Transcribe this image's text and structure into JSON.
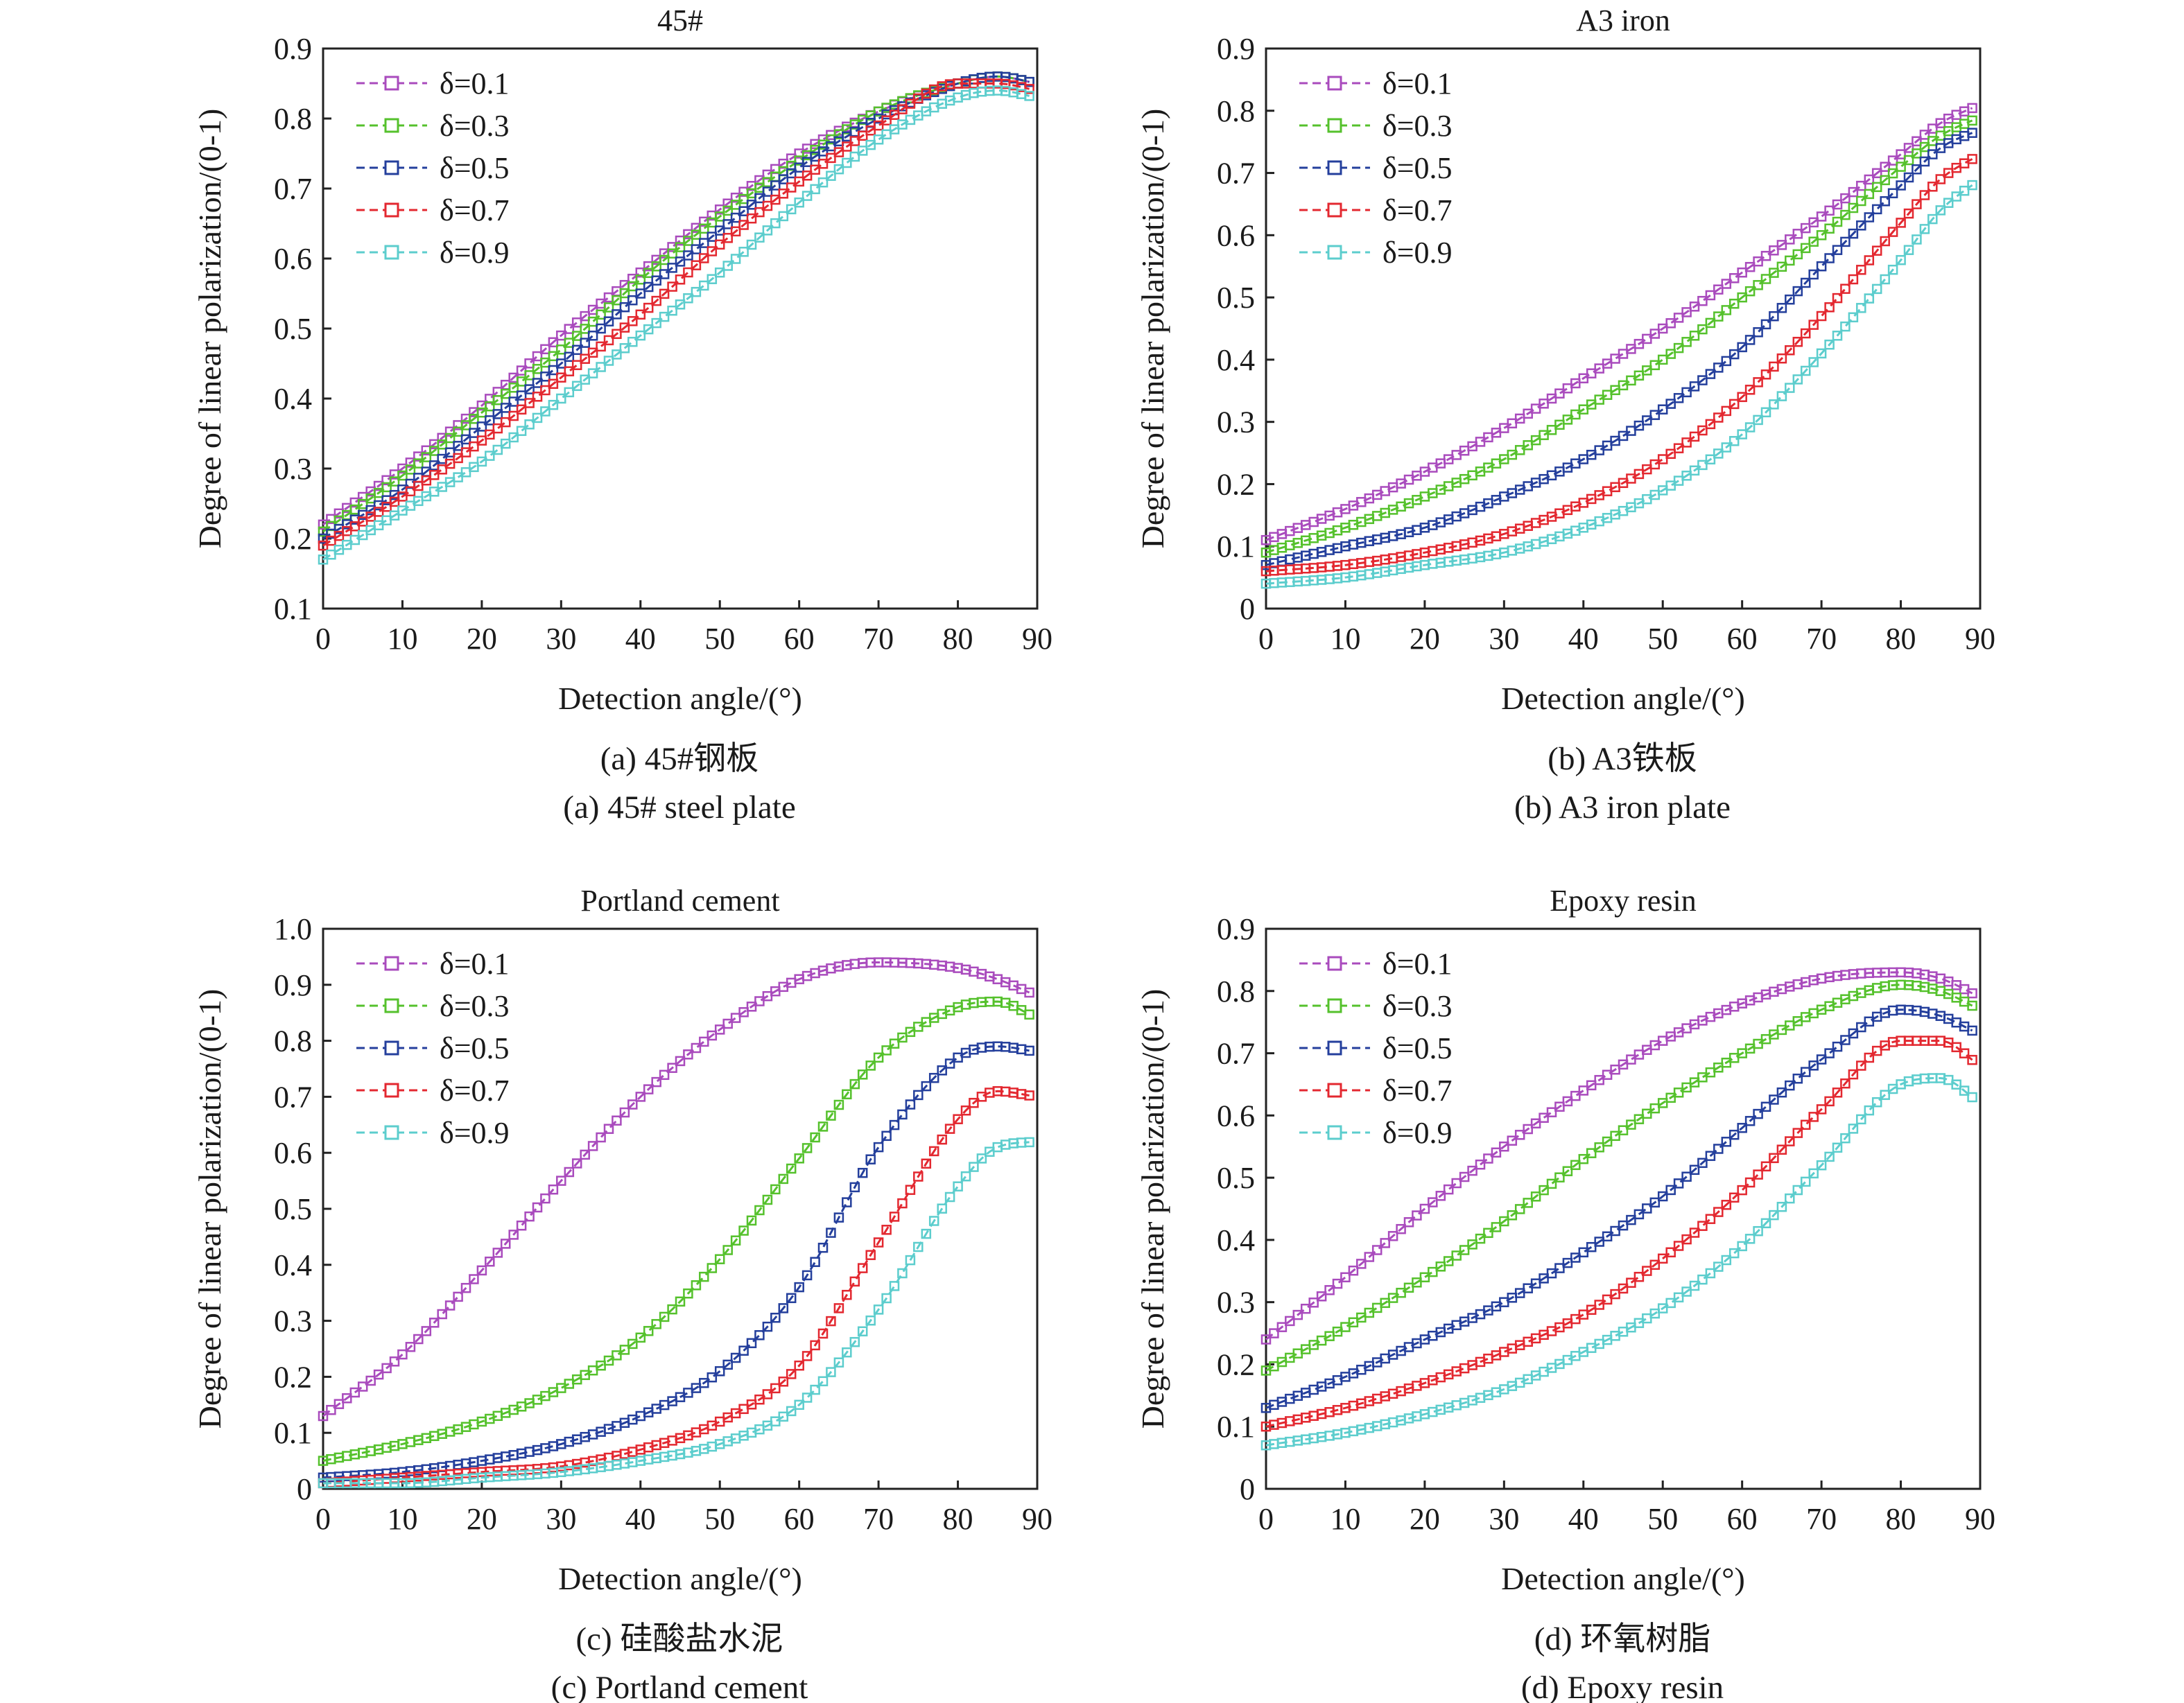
{
  "x_angles": [
    0,
    10,
    20,
    30,
    40,
    50,
    60,
    70,
    80,
    85,
    90
  ],
  "chart_data": [
    {
      "type": "line",
      "title": "45#",
      "xlabel": "Detection angle/(°)",
      "ylabel": "Degree of linear polarization/(0-1)",
      "xlim": [
        0,
        90
      ],
      "ylim": [
        0.1,
        0.9
      ],
      "xticks": [
        "0",
        "10",
        "20",
        "30",
        "40",
        "50",
        "60",
        "70",
        "80",
        "90"
      ],
      "yticks": [
        "0.1",
        "0.2",
        "0.3",
        "0.4",
        "0.5",
        "0.6",
        "0.7",
        "0.8",
        "0.9"
      ],
      "legend_position": "top-left",
      "caption_cn": "(a) 45#钢板",
      "caption_en": "(a) 45# steel plate",
      "series": [
        {
          "name": "δ=0.1",
          "color": "#a94bbd",
          "values": [
            0.22,
            0.3,
            0.39,
            0.49,
            0.58,
            0.67,
            0.75,
            0.81,
            0.85,
            0.86,
            0.85
          ]
        },
        {
          "name": "δ=0.3",
          "color": "#55c12c",
          "values": [
            0.21,
            0.29,
            0.38,
            0.47,
            0.57,
            0.66,
            0.74,
            0.81,
            0.85,
            0.86,
            0.85
          ]
        },
        {
          "name": "δ=0.5",
          "color": "#243f9c",
          "values": [
            0.2,
            0.27,
            0.36,
            0.45,
            0.55,
            0.64,
            0.73,
            0.8,
            0.85,
            0.86,
            0.85
          ]
        },
        {
          "name": "δ=0.7",
          "color": "#e32830",
          "values": [
            0.19,
            0.26,
            0.34,
            0.43,
            0.52,
            0.62,
            0.71,
            0.79,
            0.85,
            0.85,
            0.84
          ]
        },
        {
          "name": "δ=0.9",
          "color": "#5ccdcd",
          "values": [
            0.17,
            0.24,
            0.31,
            0.4,
            0.49,
            0.58,
            0.68,
            0.77,
            0.83,
            0.84,
            0.83
          ]
        }
      ]
    },
    {
      "type": "line",
      "title": "A3 iron",
      "xlabel": "Detection angle/(°)",
      "ylabel": "Degree of linear polarization/(0-1)",
      "xlim": [
        0,
        90
      ],
      "ylim": [
        0,
        0.9
      ],
      "xticks": [
        "0",
        "10",
        "20",
        "30",
        "40",
        "50",
        "60",
        "70",
        "80",
        "90"
      ],
      "yticks": [
        "0",
        "0.1",
        "0.2",
        "0.3",
        "0.4",
        "0.5",
        "0.6",
        "0.7",
        "0.8",
        "0.9"
      ],
      "legend_position": "top-left",
      "caption_cn": "(b) A3铁板",
      "caption_en": "(b) A3 iron plate",
      "series": [
        {
          "name": "δ=0.1",
          "color": "#a94bbd",
          "values": [
            0.11,
            0.16,
            0.22,
            0.29,
            0.37,
            0.45,
            0.54,
            0.63,
            0.73,
            0.78,
            0.81
          ]
        },
        {
          "name": "δ=0.3",
          "color": "#55c12c",
          "values": [
            0.09,
            0.13,
            0.18,
            0.24,
            0.32,
            0.4,
            0.5,
            0.6,
            0.71,
            0.76,
            0.79
          ]
        },
        {
          "name": "δ=0.5",
          "color": "#243f9c",
          "values": [
            0.07,
            0.1,
            0.13,
            0.18,
            0.24,
            0.32,
            0.42,
            0.55,
            0.68,
            0.74,
            0.77
          ]
        },
        {
          "name": "δ=0.7",
          "color": "#e32830",
          "values": [
            0.06,
            0.07,
            0.09,
            0.12,
            0.17,
            0.24,
            0.34,
            0.47,
            0.62,
            0.69,
            0.73
          ]
        },
        {
          "name": "δ=0.9",
          "color": "#5ccdcd",
          "values": [
            0.04,
            0.05,
            0.07,
            0.09,
            0.13,
            0.19,
            0.28,
            0.41,
            0.56,
            0.64,
            0.69
          ]
        }
      ]
    },
    {
      "type": "line",
      "title": "Portland cement",
      "xlabel": "Detection angle/(°)",
      "ylabel": "Degree of linear polarization/(0-1)",
      "xlim": [
        0,
        90
      ],
      "ylim": [
        0,
        1.0
      ],
      "xticks": [
        "0",
        "10",
        "20",
        "30",
        "40",
        "50",
        "60",
        "70",
        "80",
        "90"
      ],
      "yticks": [
        "0",
        "0.1",
        "0.2",
        "0.3",
        "0.4",
        "0.5",
        "0.6",
        "0.7",
        "0.8",
        "0.9",
        "1.0"
      ],
      "legend_position": "top-left",
      "caption_cn": "(c) 硅酸盐水泥",
      "caption_en": "(c) Portland cement",
      "series": [
        {
          "name": "δ=0.1",
          "color": "#a94bbd",
          "values": [
            0.13,
            0.24,
            0.39,
            0.55,
            0.7,
            0.82,
            0.91,
            0.94,
            0.93,
            0.91,
            0.88
          ]
        },
        {
          "name": "δ=0.3",
          "color": "#55c12c",
          "values": [
            0.05,
            0.08,
            0.12,
            0.18,
            0.27,
            0.41,
            0.59,
            0.77,
            0.86,
            0.87,
            0.84
          ]
        },
        {
          "name": "δ=0.5",
          "color": "#243f9c",
          "values": [
            0.02,
            0.03,
            0.05,
            0.08,
            0.13,
            0.21,
            0.36,
            0.61,
            0.77,
            0.79,
            0.78
          ]
        },
        {
          "name": "δ=0.7",
          "color": "#e32830",
          "values": [
            0.01,
            0.02,
            0.03,
            0.04,
            0.07,
            0.12,
            0.22,
            0.44,
            0.66,
            0.71,
            0.7
          ]
        },
        {
          "name": "δ=0.9",
          "color": "#5ccdcd",
          "values": [
            0.01,
            0.01,
            0.02,
            0.03,
            0.05,
            0.08,
            0.15,
            0.32,
            0.54,
            0.61,
            0.62
          ]
        }
      ]
    },
    {
      "type": "line",
      "title": "Epoxy resin",
      "xlabel": "Detection angle/(°)",
      "ylabel": "Degree of linear polarization/(0-1)",
      "xlim": [
        0,
        90
      ],
      "ylim": [
        0,
        0.9
      ],
      "xticks": [
        "0",
        "10",
        "20",
        "30",
        "40",
        "50",
        "60",
        "70",
        "80",
        "90"
      ],
      "yticks": [
        "0",
        "0.1",
        "0.2",
        "0.3",
        "0.4",
        "0.5",
        "0.6",
        "0.7",
        "0.8",
        "0.9"
      ],
      "legend_position": "top-left",
      "caption_cn": "(d) 环氧树脂",
      "caption_en": "(d) Epoxy resin",
      "series": [
        {
          "name": "δ=0.1",
          "color": "#a94bbd",
          "values": [
            0.24,
            0.34,
            0.45,
            0.55,
            0.64,
            0.72,
            0.78,
            0.82,
            0.83,
            0.82,
            0.79
          ]
        },
        {
          "name": "δ=0.3",
          "color": "#55c12c",
          "values": [
            0.19,
            0.26,
            0.34,
            0.43,
            0.53,
            0.62,
            0.7,
            0.77,
            0.81,
            0.8,
            0.77
          ]
        },
        {
          "name": "δ=0.5",
          "color": "#243f9c",
          "values": [
            0.13,
            0.18,
            0.24,
            0.3,
            0.38,
            0.47,
            0.58,
            0.69,
            0.77,
            0.76,
            0.73
          ]
        },
        {
          "name": "δ=0.7",
          "color": "#e32830",
          "values": [
            0.1,
            0.13,
            0.17,
            0.22,
            0.28,
            0.37,
            0.48,
            0.61,
            0.72,
            0.72,
            0.68
          ]
        },
        {
          "name": "δ=0.9",
          "color": "#5ccdcd",
          "values": [
            0.07,
            0.09,
            0.12,
            0.16,
            0.22,
            0.29,
            0.39,
            0.52,
            0.65,
            0.66,
            0.62
          ]
        }
      ]
    }
  ]
}
